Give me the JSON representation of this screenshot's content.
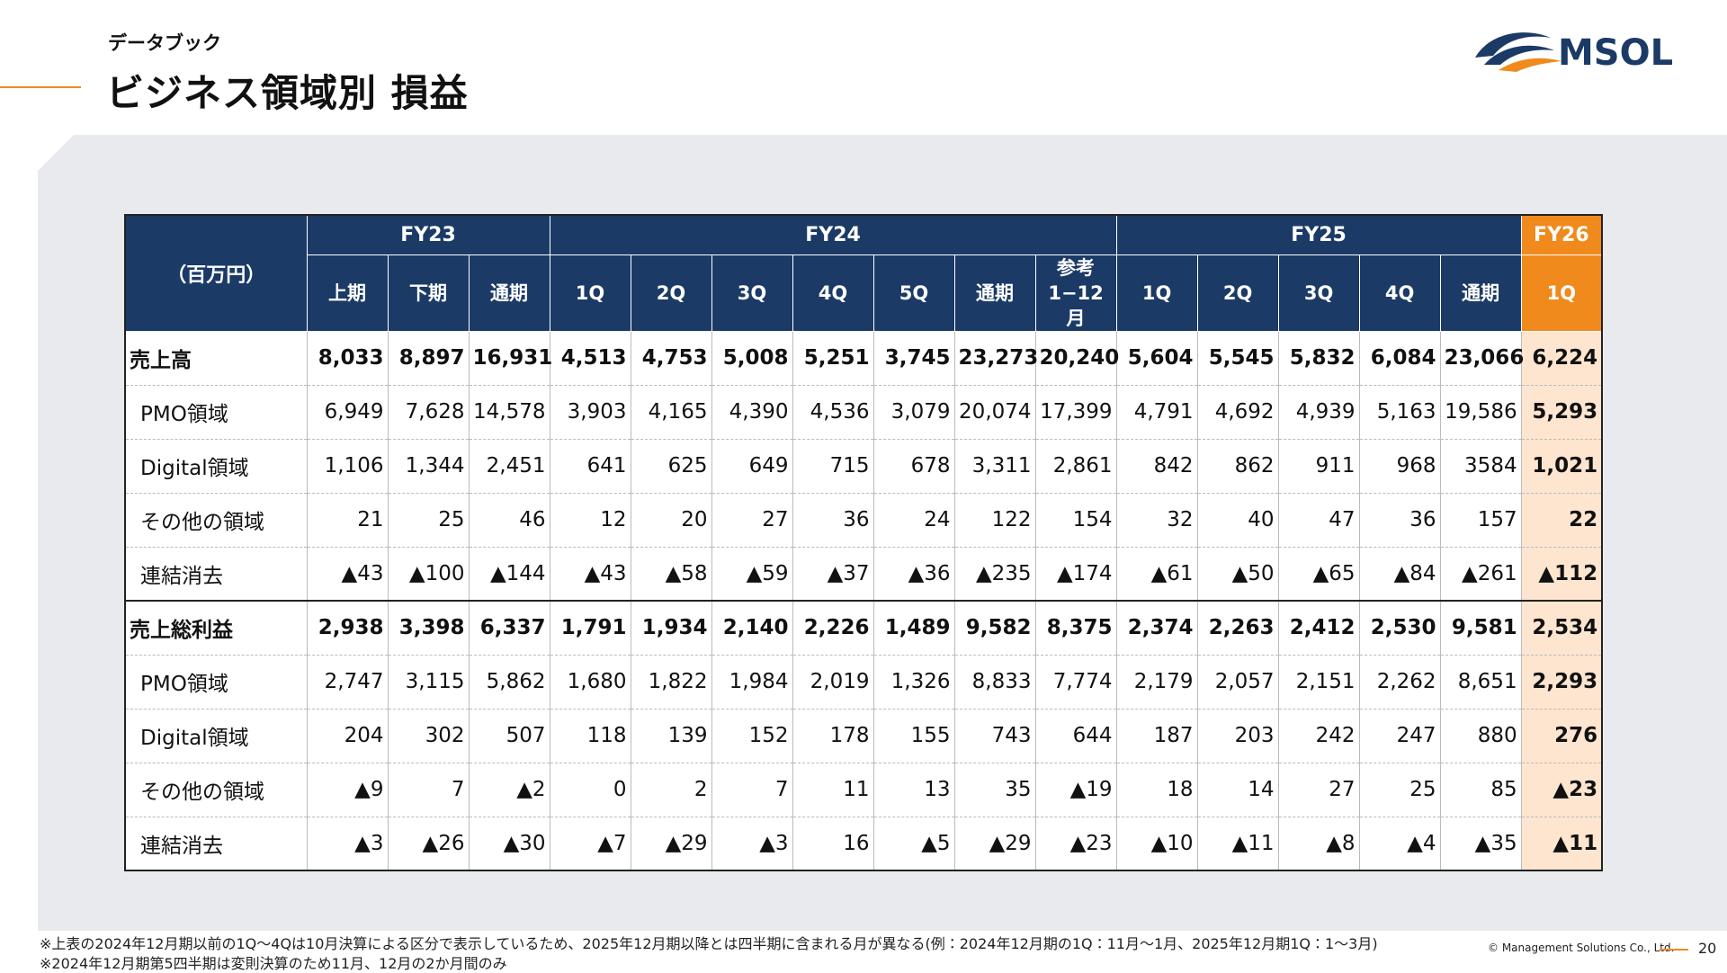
{
  "header": {
    "subtitle": "データブック",
    "title": "ビジネス領域別 損益"
  },
  "logo": {
    "text": "MSOL"
  },
  "table": {
    "unit": "（百万円）",
    "groups": [
      {
        "label": "FY23",
        "columns": [
          "上期",
          "下期",
          "通期"
        ]
      },
      {
        "label": "FY24",
        "columns": [
          "1Q",
          "2Q",
          "3Q",
          "4Q",
          "5Q",
          "通期",
          "参考\n1−12月"
        ]
      },
      {
        "label": "FY25",
        "columns": [
          "1Q",
          "2Q",
          "3Q",
          "4Q",
          "通期"
        ]
      },
      {
        "label": "FY26",
        "columns": [
          "1Q"
        ]
      }
    ],
    "sections": [
      {
        "label": "売上高",
        "values": [
          "8,033",
          "8,897",
          "16,931",
          "4,513",
          "4,753",
          "5,008",
          "5,251",
          "3,745",
          "23,273",
          "20,240",
          "5,604",
          "5,545",
          "5,832",
          "6,084",
          "23,066",
          "6,224"
        ],
        "items": [
          {
            "label": "PMO領域",
            "values": [
              "6,949",
              "7,628",
              "14,578",
              "3,903",
              "4,165",
              "4,390",
              "4,536",
              "3,079",
              "20,074",
              "17,399",
              "4,791",
              "4,692",
              "4,939",
              "5,163",
              "19,586",
              "5,293"
            ]
          },
          {
            "label": "Digital領域",
            "values": [
              "1,106",
              "1,344",
              "2,451",
              "641",
              "625",
              "649",
              "715",
              "678",
              "3,311",
              "2,861",
              "842",
              "862",
              "911",
              "968",
              "3584",
              "1,021"
            ]
          },
          {
            "label": "その他の領域",
            "values": [
              "21",
              "25",
              "46",
              "12",
              "20",
              "27",
              "36",
              "24",
              "122",
              "154",
              "32",
              "40",
              "47",
              "36",
              "157",
              "22"
            ]
          },
          {
            "label": "連結消去",
            "values": [
              "▲43",
              "▲100",
              "▲144",
              "▲43",
              "▲58",
              "▲59",
              "▲37",
              "▲36",
              "▲235",
              "▲174",
              "▲61",
              "▲50",
              "▲65",
              "▲84",
              "▲261",
              "▲112"
            ]
          }
        ]
      },
      {
        "label": "売上総利益",
        "values": [
          "2,938",
          "3,398",
          "6,337",
          "1,791",
          "1,934",
          "2,140",
          "2,226",
          "1,489",
          "9,582",
          "8,375",
          "2,374",
          "2,263",
          "2,412",
          "2,530",
          "9,581",
          "2,534"
        ],
        "items": [
          {
            "label": "PMO領域",
            "values": [
              "2,747",
              "3,115",
              "5,862",
              "1,680",
              "1,822",
              "1,984",
              "2,019",
              "1,326",
              "8,833",
              "7,774",
              "2,179",
              "2,057",
              "2,151",
              "2,262",
              "8,651",
              "2,293"
            ]
          },
          {
            "label": "Digital領域",
            "values": [
              "204",
              "302",
              "507",
              "118",
              "139",
              "152",
              "178",
              "155",
              "743",
              "644",
              "187",
              "203",
              "242",
              "247",
              "880",
              "276"
            ]
          },
          {
            "label": "その他の領域",
            "values": [
              "▲9",
              "7",
              "▲2",
              "0",
              "2",
              "7",
              "11",
              "13",
              "35",
              "▲19",
              "18",
              "14",
              "27",
              "25",
              "85",
              "▲23"
            ]
          },
          {
            "label": "連結消去",
            "values": [
              "▲3",
              "▲26",
              "▲30",
              "▲7",
              "▲29",
              "▲3",
              "16",
              "▲5",
              "▲29",
              "▲23",
              "▲10",
              "▲11",
              "▲8",
              "▲4",
              "▲35",
              "▲11"
            ]
          }
        ]
      }
    ]
  },
  "footnotes": [
    "※上表の2024年12月期以前の1Q～4Qは10月決算による区分で表示しているため、2025年12月期以降とは四半期に含まれる月が異なる(例：2024年12月期の1Q：11月～1月、2025年12月期1Q：1～3月)",
    "※2024年12月期第5四半期は変則決算のため11月、12月の2か月間のみ"
  ],
  "footer": {
    "copyright": "© Management Solutions Co., Ltd.",
    "page": "20"
  }
}
